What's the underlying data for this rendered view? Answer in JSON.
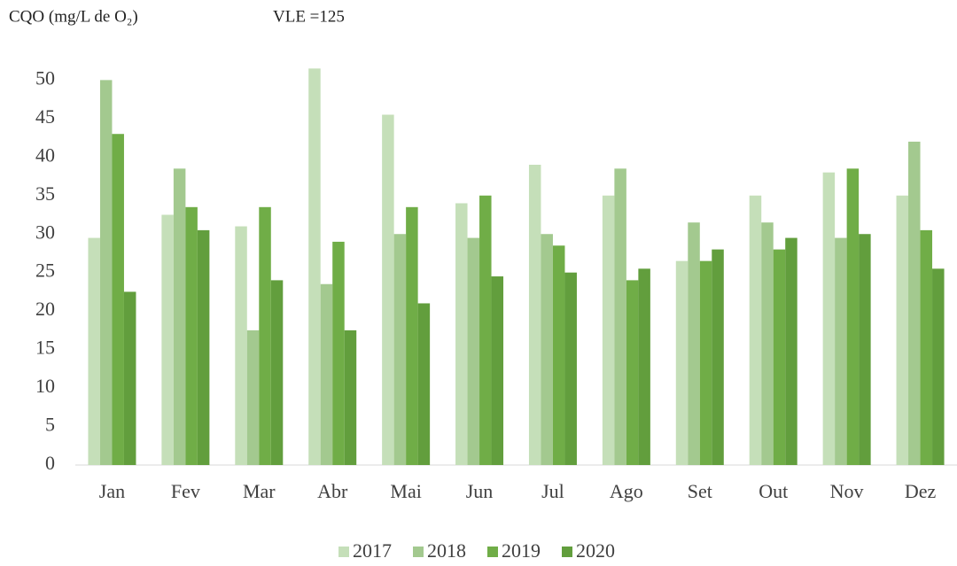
{
  "chart_data": {
    "type": "bar",
    "title": "CQO (mg/L de O₂)",
    "annotation": "VLE =125",
    "categories": [
      "Jan",
      "Fev",
      "Mar",
      "Abr",
      "Mai",
      "Jun",
      "Jul",
      "Ago",
      "Set",
      "Out",
      "Nov",
      "Dez"
    ],
    "series": [
      {
        "name": "2017",
        "color": "#c5dfb9",
        "values": [
          29.5,
          32.5,
          31,
          51.5,
          45.5,
          34,
          39,
          35,
          26.5,
          35,
          38,
          35
        ]
      },
      {
        "name": "2018",
        "color": "#a3c98f",
        "values": [
          50,
          38.5,
          17.5,
          23.5,
          30,
          29.5,
          30,
          38.5,
          31.5,
          31.5,
          29.5,
          42
        ]
      },
      {
        "name": "2019",
        "color": "#70ad47",
        "values": [
          43,
          33.5,
          33.5,
          29,
          33.5,
          35,
          28.5,
          24,
          26.5,
          28,
          38.5,
          30.5
        ]
      },
      {
        "name": "2020",
        "color": "#629e3d",
        "values": [
          22.5,
          30.5,
          24,
          17.5,
          21,
          24.5,
          25,
          25.5,
          28,
          29.5,
          30,
          25.5
        ]
      }
    ],
    "ylim": [
      0,
      52
    ],
    "yticks": [
      0,
      5,
      10,
      15,
      20,
      25,
      30,
      35,
      40,
      45,
      50
    ],
    "grid": false,
    "legend": "bottom"
  }
}
